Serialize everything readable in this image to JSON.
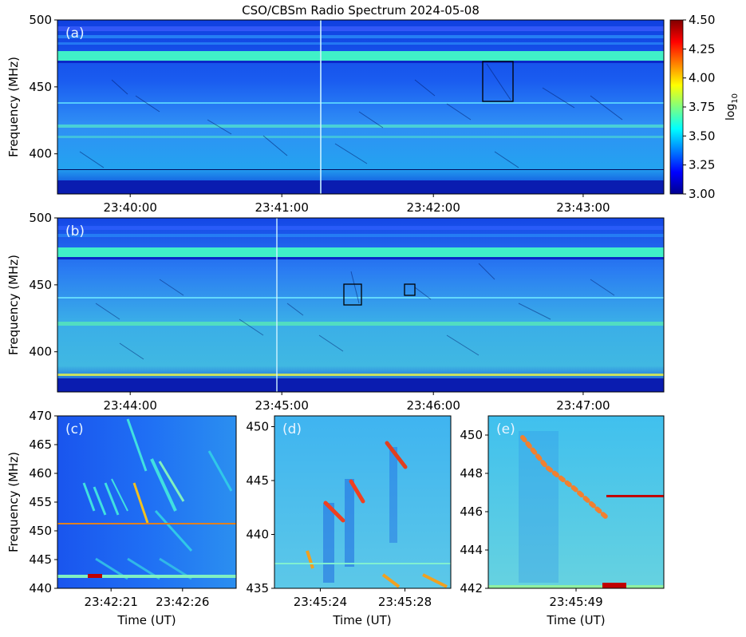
{
  "title": "CSO/CBSm Radio Spectrum 2024-05-08",
  "colorbar": {
    "label": "log",
    "label_sub": "10",
    "ticks": [
      "4.50",
      "4.25",
      "4.00",
      "3.75",
      "3.50",
      "3.25",
      "3.00"
    ],
    "range": [
      3.0,
      4.5
    ],
    "colormap": "jet"
  },
  "chart_data": [
    {
      "type": "heatmap",
      "panel_label": "(a)",
      "ylabel": "Frequency (MHz)",
      "xlabel": "",
      "ylim": [
        370,
        500
      ],
      "yticks": [
        "500",
        "450",
        "400"
      ],
      "xticks": [
        "23:40:00",
        "23:41:00",
        "23:42:00",
        "23:43:00"
      ],
      "xrange": [
        "23:39:30",
        "23:43:33"
      ],
      "highlight_boxes": [
        {
          "t_start": "23:42:18",
          "t_end": "23:42:30",
          "f_low": 440,
          "f_high": 470
        }
      ]
    },
    {
      "type": "heatmap",
      "panel_label": "(b)",
      "ylabel": "Frequency (MHz)",
      "xlabel": "",
      "ylim": [
        370,
        500
      ],
      "yticks": [
        "500",
        "450",
        "400"
      ],
      "xticks": [
        "23:44:00",
        "23:45:00",
        "23:46:00",
        "23:47:00"
      ],
      "xrange": [
        "23:43:33",
        "23:47:35"
      ],
      "highlight_boxes": [
        {
          "t_start": "23:45:20",
          "t_end": "23:45:30",
          "f_low": 435,
          "f_high": 451
        },
        {
          "t_start": "23:45:45",
          "t_end": "23:45:50",
          "f_low": 442,
          "f_high": 451
        }
      ]
    },
    {
      "type": "heatmap",
      "panel_label": "(c)",
      "ylabel": "Frequency (MHz)",
      "xlabel": "Time (UT)",
      "ylim": [
        440,
        470
      ],
      "yticks": [
        "470",
        "465",
        "460",
        "455",
        "450",
        "445",
        "440"
      ],
      "xticks": [
        "23:42:21",
        "23:42:26"
      ]
    },
    {
      "type": "heatmap",
      "panel_label": "(d)",
      "ylabel": "",
      "xlabel": "Time (UT)",
      "ylim": [
        435,
        451
      ],
      "yticks": [
        "450",
        "445",
        "440",
        "435"
      ],
      "xticks": [
        "23:45:24",
        "23:45:28"
      ]
    },
    {
      "type": "heatmap",
      "panel_label": "(e)",
      "ylabel": "",
      "xlabel": "Time (UT)",
      "ylim": [
        442,
        451
      ],
      "yticks": [
        "450",
        "448",
        "446",
        "444",
        "442"
      ],
      "xticks": [
        "23:45:49"
      ]
    }
  ]
}
